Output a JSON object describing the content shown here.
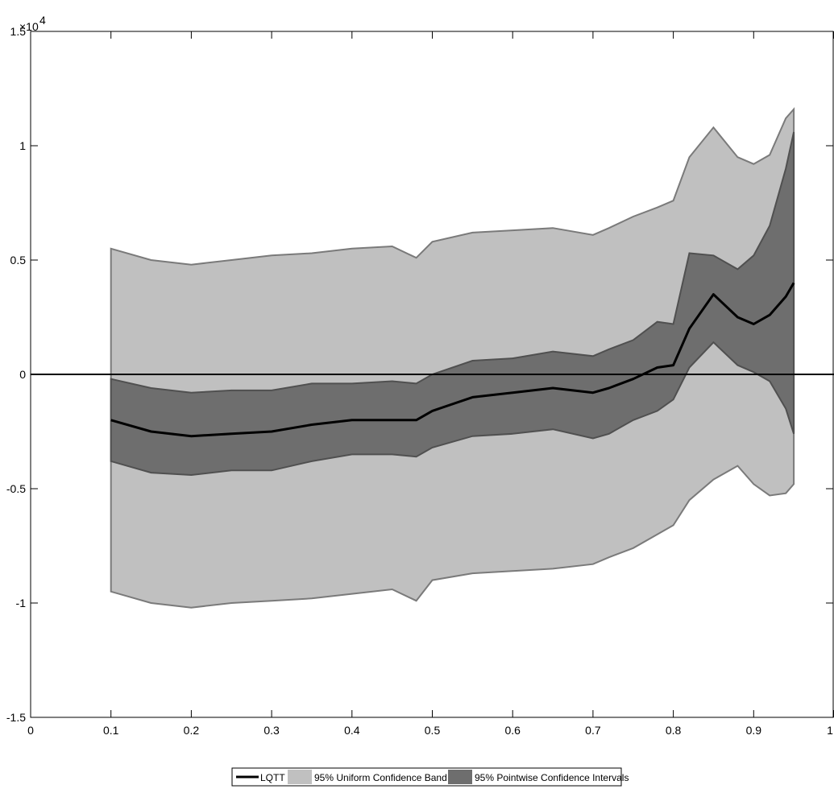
{
  "chart_data": {
    "type": "area",
    "title": "",
    "xlabel": "",
    "ylabel": "",
    "xlim": [
      0,
      1
    ],
    "ylim": [
      -15000,
      15000
    ],
    "y_exponent_label": "×10",
    "y_exponent_power": "4",
    "x_ticks": [
      0,
      0.1,
      0.2,
      0.3,
      0.4,
      0.5,
      0.6,
      0.7,
      0.8,
      0.9,
      1
    ],
    "x_tick_labels": [
      "0",
      "0.1",
      "0.2",
      "0.3",
      "0.4",
      "0.5",
      "0.6",
      "0.7",
      "0.8",
      "0.9",
      "1"
    ],
    "y_ticks": [
      -15000,
      -10000,
      -5000,
      0,
      5000,
      10000,
      15000
    ],
    "y_tick_labels": [
      "-1.5",
      "-1",
      "-0.5",
      "0",
      "0.5",
      "1",
      "1.5"
    ],
    "grid": false,
    "legend_position": "bottom-center",
    "colors": {
      "uniform_band": "#c0c0c0",
      "uniform_edge": "#7a7a7a",
      "pointwise_band": "#6e6e6e",
      "pointwise_edge": "#505050",
      "line": "#000000",
      "zero_line": "#000000"
    },
    "x": [
      0.1,
      0.15,
      0.2,
      0.25,
      0.3,
      0.35,
      0.4,
      0.45,
      0.48,
      0.5,
      0.55,
      0.6,
      0.65,
      0.7,
      0.72,
      0.75,
      0.78,
      0.8,
      0.82,
      0.85,
      0.88,
      0.9,
      0.92,
      0.94,
      0.95
    ],
    "series": [
      {
        "name": "LQTT",
        "values": [
          -2000,
          -2500,
          -2700,
          -2600,
          -2500,
          -2200,
          -2000,
          -2000,
          -2000,
          -1600,
          -1000,
          -800,
          -600,
          -800,
          -600,
          -200,
          300,
          400,
          2000,
          3500,
          2500,
          2200,
          2600,
          3400,
          4000
        ]
      },
      {
        "name": "95% Uniform Confidence Band",
        "lower": [
          -9500,
          -10000,
          -10200,
          -10000,
          -9900,
          -9800,
          -9600,
          -9400,
          -9900,
          -9000,
          -8700,
          -8600,
          -8500,
          -8300,
          -8000,
          -7600,
          -7000,
          -6600,
          -5500,
          -4600,
          -4000,
          -4800,
          -5300,
          -5200,
          -4800
        ],
        "upper": [
          5500,
          5000,
          4800,
          5000,
          5200,
          5300,
          5500,
          5600,
          5100,
          5800,
          6200,
          6300,
          6400,
          6100,
          6400,
          6900,
          7300,
          7600,
          9500,
          10800,
          9500,
          9200,
          9600,
          11200,
          11600
        ]
      },
      {
        "name": "95% Pointwise Confidence Intervals",
        "lower": [
          -3800,
          -4300,
          -4400,
          -4200,
          -4200,
          -3800,
          -3500,
          -3500,
          -3600,
          -3200,
          -2700,
          -2600,
          -2400,
          -2800,
          -2600,
          -2000,
          -1600,
          -1100,
          300,
          1400,
          400,
          100,
          -300,
          -1500,
          -2600
        ],
        "upper": [
          -200,
          -600,
          -800,
          -700,
          -700,
          -400,
          -400,
          -300,
          -400,
          0,
          600,
          700,
          1000,
          800,
          1100,
          1500,
          2300,
          2200,
          5300,
          5200,
          4600,
          5200,
          6500,
          9000,
          10600
        ]
      }
    ]
  }
}
